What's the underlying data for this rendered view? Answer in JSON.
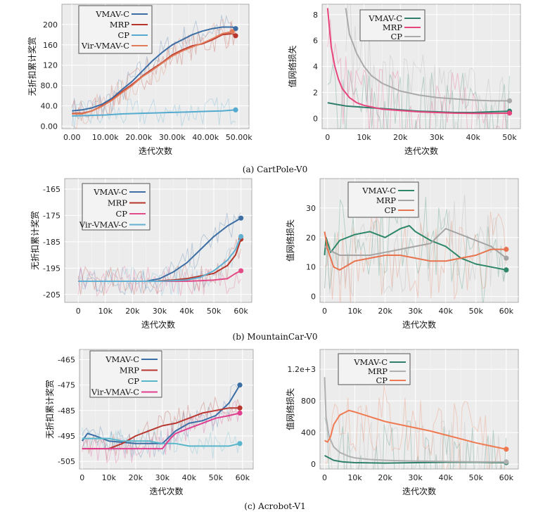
{
  "colors": {
    "VMAV-C": "#3c6ea5",
    "MRP": "#b8352b",
    "CP": "#55abcf",
    "Vir-VMAV-C": "#e07a58",
    "VMAV-C_loss": "#2f7e6b",
    "MRP_loss": "#e7457e",
    "CP_loss": "#aaaaaa",
    "mc_vmav": "#3d6fa4",
    "mc_mrp": "#b5362a",
    "mc_cp": "#e34b86",
    "mc_vir": "#62afd0",
    "mcl_vmav": "#2f8769",
    "mcl_mrp": "#a4a4a4",
    "mcl_cp": "#e7734f",
    "ac_vmav": "#3a6ea5",
    "ac_mrp": "#b83630",
    "ac_cp": "#59b7cc",
    "ac_vir": "#df3f8e",
    "acl_vmav": "#2f806a",
    "acl_mrp": "#b0b0b0",
    "acl_cp": "#ef7a52"
  },
  "captions": [
    "(a) CartPole-V0",
    "(b) MountainCar-V0",
    "(c) Acrobot-V1"
  ],
  "chart_data": [
    {
      "type": "line",
      "ylabel": "无折扣累计奖赏",
      "xlabel": "迭代次数",
      "xlim": [
        -3000,
        53000
      ],
      "ylim": [
        -5,
        240
      ],
      "xticks": [
        0,
        10000,
        20000,
        30000,
        40000,
        50000
      ],
      "xtick_labels": [
        "0.00",
        "10.00k",
        "20.00k",
        "30.00k",
        "40.00k",
        "50.00k"
      ],
      "yticks": [
        0,
        40,
        80,
        120,
        160,
        200
      ],
      "ytick_labels": [
        "0.00",
        "40.0",
        "80.0",
        "120",
        "160",
        "200"
      ],
      "legend": [
        "VMAV-C",
        "MRP",
        "CP",
        "Vir-VMAV-C"
      ],
      "series": [
        {
          "name": "VMAV-C",
          "x": [
            0,
            3000,
            6000,
            9000,
            12000,
            15000,
            18000,
            21000,
            24000,
            27000,
            30000,
            33000,
            36000,
            39000,
            42000,
            45000,
            48000,
            49000
          ],
          "y": [
            30,
            32,
            36,
            43,
            55,
            72,
            88,
            108,
            128,
            145,
            160,
            170,
            180,
            187,
            192,
            195,
            195,
            192
          ]
        },
        {
          "name": "MRP",
          "x": [
            0,
            3000,
            6000,
            9000,
            12000,
            15000,
            18000,
            21000,
            24000,
            27000,
            30000,
            33000,
            36000,
            39000,
            42000,
            45000,
            48000,
            49000
          ],
          "y": [
            25,
            25,
            30,
            40,
            52,
            68,
            82,
            98,
            112,
            125,
            140,
            150,
            158,
            162,
            170,
            180,
            182,
            178
          ]
        },
        {
          "name": "CP",
          "x": [
            0,
            5000,
            10000,
            15000,
            20000,
            25000,
            30000,
            35000,
            40000,
            45000,
            49000
          ],
          "y": [
            20,
            21,
            22,
            24,
            25,
            26,
            27,
            28,
            29,
            30,
            32
          ]
        },
        {
          "name": "Vir-VMAV-C",
          "x": [
            0,
            3000,
            6000,
            9000,
            12000,
            15000,
            18000,
            21000,
            24000,
            27000,
            30000,
            33000,
            36000,
            39000,
            42000,
            45000,
            48000
          ],
          "y": [
            24,
            24,
            30,
            39,
            51,
            66,
            80,
            97,
            110,
            124,
            138,
            148,
            156,
            163,
            172,
            182,
            186
          ]
        }
      ]
    },
    {
      "type": "line",
      "ylabel": "值网络损失",
      "xlabel": "迭代次数",
      "xlim": [
        -1500,
        53000
      ],
      "ylim": [
        -0.8,
        8.8
      ],
      "xticks": [
        0,
        10000,
        20000,
        30000,
        40000,
        50000
      ],
      "xtick_labels": [
        "0",
        "10k",
        "20k",
        "30k",
        "40k",
        "50k"
      ],
      "yticks": [
        0,
        2,
        4,
        6,
        8
      ],
      "ytick_labels": [
        "0",
        "2",
        "4",
        "6",
        "8"
      ],
      "legend": [
        "VMAV-C",
        "MRP",
        "CP"
      ],
      "series": [
        {
          "name": "VMAV-C",
          "x": [
            0,
            2000,
            5000,
            10000,
            15000,
            20000,
            25000,
            30000,
            35000,
            40000,
            45000,
            50000
          ],
          "y": [
            1.2,
            1.1,
            0.95,
            0.85,
            0.75,
            0.65,
            0.55,
            0.5,
            0.45,
            0.45,
            0.5,
            0.55
          ]
        },
        {
          "name": "MRP",
          "x": [
            0,
            500,
            1000,
            2000,
            3000,
            4000,
            6000,
            8000,
            10000,
            15000,
            20000,
            25000,
            30000,
            35000,
            40000,
            45000,
            50000
          ],
          "y": [
            8.5,
            7.0,
            5.5,
            4.0,
            3.0,
            2.3,
            1.6,
            1.2,
            1.0,
            0.7,
            0.6,
            0.5,
            0.45,
            0.4,
            0.38,
            0.38,
            0.4
          ]
        },
        {
          "name": "CP",
          "x": [
            5000,
            6000,
            8000,
            10000,
            12000,
            15000,
            20000,
            25000,
            30000,
            35000,
            40000,
            45000,
            50000
          ],
          "y": [
            8.5,
            6.5,
            5.0,
            4.0,
            3.3,
            2.7,
            2.1,
            1.8,
            1.6,
            1.5,
            1.4,
            1.35,
            1.35
          ]
        }
      ]
    },
    {
      "type": "line",
      "ylabel": "无折扣累计奖赏",
      "xlabel": "迭代次数",
      "xlim": [
        -5000,
        64000
      ],
      "ylim": [
        -208,
        -161
      ],
      "xticks": [
        0,
        10000,
        20000,
        30000,
        40000,
        50000,
        60000
      ],
      "xtick_labels": [
        "0",
        "10k",
        "20k",
        "30k",
        "40k",
        "50k",
        "60k"
      ],
      "yticks": [
        -165,
        -175,
        -185,
        -195,
        -205
      ],
      "ytick_labels": [
        "-165",
        "-175",
        "-185",
        "-195",
        "-205"
      ],
      "legend": [
        "VMAV-C",
        "MRP",
        "CP",
        "Vir-VMAV-C"
      ],
      "series": [
        {
          "name": "VMAV-C",
          "x": [
            0,
            25000,
            30000,
            35000,
            40000,
            45000,
            50000,
            55000,
            60000
          ],
          "y": [
            -200,
            -200,
            -199,
            -196.5,
            -193,
            -188,
            -183,
            -179,
            -176
          ]
        },
        {
          "name": "MRP",
          "x": [
            0,
            28000,
            35000,
            40000,
            45000,
            50000,
            55000,
            58000,
            60000
          ],
          "y": [
            -200,
            -200,
            -199.5,
            -199,
            -198,
            -197,
            -194,
            -190,
            -184
          ]
        },
        {
          "name": "CP",
          "x": [
            0,
            40000,
            45000,
            50000,
            55000,
            58000,
            60000
          ],
          "y": [
            -200,
            -200,
            -199.8,
            -199.5,
            -199,
            -197,
            -196
          ]
        },
        {
          "name": "Vir-VMAV-C",
          "x": [
            0,
            30000,
            40000,
            45000,
            50000,
            55000,
            58000,
            60000
          ],
          "y": [
            -200,
            -200,
            -199.5,
            -198.5,
            -196,
            -192,
            -188,
            -183
          ]
        }
      ]
    },
    {
      "type": "line",
      "ylabel": "值网络损失",
      "xlabel": "迭代次数",
      "xlim": [
        -1500,
        64000
      ],
      "ylim": [
        -2,
        40
      ],
      "xticks": [
        0,
        10000,
        20000,
        30000,
        40000,
        50000,
        60000
      ],
      "xtick_labels": [
        "0",
        "10k",
        "20k",
        "30k",
        "40k",
        "50k",
        "60k"
      ],
      "yticks": [
        0,
        10,
        20,
        30
      ],
      "ytick_labels": [
        "0",
        "10",
        "20",
        "30"
      ],
      "legend": [
        "VMAV-C",
        "MRP",
        "CP"
      ],
      "series": [
        {
          "name": "VMAV-C",
          "x": [
            0,
            500,
            2000,
            5000,
            10000,
            15000,
            20000,
            25000,
            28000,
            30000,
            35000,
            40000,
            45000,
            50000,
            55000,
            60000
          ],
          "y": [
            14,
            20,
            15,
            19,
            21,
            22,
            20,
            23,
            24,
            22,
            19,
            17,
            13,
            11,
            10,
            9
          ]
        },
        {
          "name": "MRP",
          "x": [
            0,
            1000,
            3000,
            5000,
            10000,
            15000,
            20000,
            25000,
            30000,
            35000,
            40000,
            45000,
            50000,
            55000,
            60000
          ],
          "y": [
            17,
            16,
            15,
            14,
            14,
            14,
            15,
            16,
            17,
            18,
            23,
            21,
            19,
            17,
            13
          ]
        },
        {
          "name": "CP",
          "x": [
            0,
            1000,
            3000,
            5000,
            10000,
            15000,
            20000,
            25000,
            30000,
            35000,
            40000,
            45000,
            50000,
            55000,
            60000
          ],
          "y": [
            22,
            16,
            10,
            9,
            12,
            13,
            14,
            14,
            13,
            12,
            12,
            13,
            14,
            16,
            16
          ]
        }
      ]
    },
    {
      "type": "line",
      "ylabel": "无折扣累计奖赏",
      "xlabel": "迭代次数",
      "xlim": [
        -1000,
        64000
      ],
      "ylim": [
        -508,
        -461
      ],
      "xticks": [
        0,
        10000,
        20000,
        30000,
        40000,
        50000,
        60000
      ],
      "xtick_labels": [
        "0",
        "10k",
        "20k",
        "30k",
        "40k",
        "50k",
        "60k"
      ],
      "yticks": [
        -465,
        -475,
        -485,
        -495,
        -505
      ],
      "ytick_labels": [
        "-465",
        "-475",
        "-485",
        "-495",
        "-505"
      ],
      "legend": [
        "VMAV-C",
        "MRP",
        "CP",
        "Vir-VMAV-C"
      ],
      "series": [
        {
          "name": "VMAV-C",
          "x": [
            0,
            2000,
            5000,
            10000,
            20000,
            30000,
            35000,
            40000,
            45000,
            50000,
            55000,
            59000
          ],
          "y": [
            -497,
            -494,
            -495,
            -497,
            -498,
            -498,
            -493,
            -490,
            -489,
            -487,
            -482,
            -475
          ]
        },
        {
          "name": "MRP",
          "x": [
            0,
            10000,
            15000,
            20000,
            25000,
            30000,
            35000,
            40000,
            45000,
            50000,
            55000,
            59000
          ],
          "y": [
            -500,
            -500,
            -498,
            -495,
            -493,
            -491,
            -490,
            -488,
            -486,
            -485,
            -484,
            -484
          ]
        },
        {
          "name": "CP",
          "x": [
            0,
            5000,
            10000,
            15000,
            20000,
            25000,
            30000,
            35000,
            40000,
            45000,
            50000,
            55000,
            59000
          ],
          "y": [
            -496,
            -496,
            -496,
            -497,
            -497,
            -497,
            -498,
            -498,
            -499,
            -499,
            -499,
            -499,
            -498
          ]
        },
        {
          "name": "Vir-VMAV-C",
          "x": [
            0,
            10000,
            20000,
            30000,
            33000,
            35000,
            40000,
            45000,
            50000,
            55000,
            59000
          ],
          "y": [
            -500,
            -500,
            -500,
            -500,
            -496,
            -494,
            -492,
            -490,
            -488,
            -487,
            -486
          ]
        }
      ]
    },
    {
      "type": "line",
      "ylabel": "值网络损失",
      "xlabel": "迭代次数",
      "xlim": [
        -1500,
        64000
      ],
      "ylim": [
        -60,
        1450
      ],
      "xticks": [
        0,
        10000,
        20000,
        30000,
        40000,
        50000,
        60000
      ],
      "xtick_labels": [
        "0",
        "10k",
        "20k",
        "30k",
        "40k",
        "50k",
        "60k"
      ],
      "yticks": [
        0,
        400,
        800,
        1200
      ],
      "ytick_labels": [
        "0",
        "400",
        "800",
        "1.2e+3"
      ],
      "legend": [
        "VMAV-C",
        "MRP",
        "CP"
      ],
      "series": [
        {
          "name": "VMAV-C",
          "x": [
            0,
            1000,
            3000,
            6000,
            10000,
            20000,
            30000,
            40000,
            50000,
            60000
          ],
          "y": [
            110,
            90,
            50,
            30,
            20,
            15,
            20,
            25,
            25,
            20
          ]
        },
        {
          "name": "MRP",
          "x": [
            0,
            500,
            1500,
            3000,
            5000,
            8000,
            10000,
            15000,
            20000,
            25000,
            30000,
            40000,
            50000,
            60000
          ],
          "y": [
            1100,
            600,
            350,
            220,
            150,
            100,
            80,
            60,
            50,
            45,
            40,
            35,
            30,
            30
          ]
        },
        {
          "name": "CP",
          "x": [
            0,
            1000,
            2000,
            3000,
            5000,
            8000,
            10000,
            15000,
            20000,
            25000,
            30000,
            35000,
            40000,
            45000,
            50000,
            55000,
            60000
          ],
          "y": [
            300,
            280,
            350,
            500,
            620,
            680,
            660,
            600,
            540,
            500,
            460,
            420,
            370,
            320,
            270,
            230,
            190
          ]
        }
      ]
    }
  ]
}
